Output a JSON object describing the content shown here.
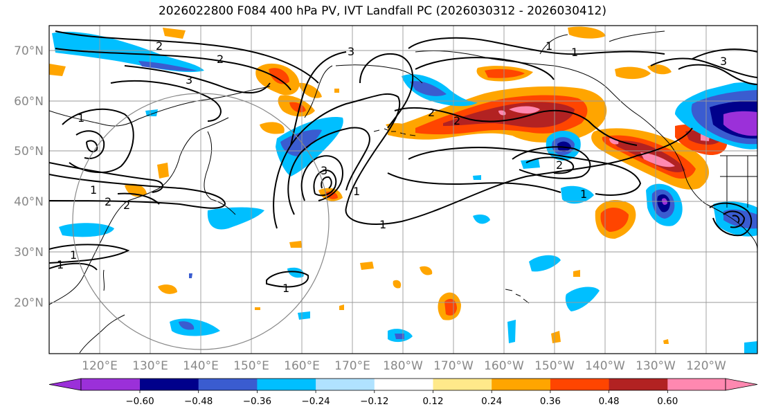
{
  "title": "2026022800 F084 400 hPa PV, IVT Landfall PC (2026030312 - 2026030412)",
  "lat_labels": [
    "70°N",
    "60°N",
    "50°N",
    "40°N",
    "30°N",
    "20°N"
  ],
  "lon_labels": [
    "120°E",
    "130°E",
    "140°E",
    "150°E",
    "160°E",
    "170°E",
    "180°W",
    "170°W",
    "160°W",
    "150°W",
    "140°W",
    "130°W",
    "120°W"
  ],
  "colorbar": {
    "ticks": [
      "−0.60",
      "−0.48",
      "−0.36",
      "−0.24",
      "−0.12",
      "0.12",
      "0.24",
      "0.36",
      "0.48",
      "0.60"
    ],
    "colors": [
      "#9b30d9",
      "#00008b",
      "#3a5cd0",
      "#00bfff",
      "#b0e2ff",
      "#ffffff",
      "#ffe98a",
      "#ffa500",
      "#ff4500",
      "#b22222",
      "#ff88b0"
    ]
  },
  "contour_labels": [
    "2",
    "2",
    "3",
    "1",
    "1",
    "2",
    "2",
    "3",
    "1",
    "1",
    "2",
    "2",
    "1",
    "1",
    "3",
    "1",
    "2",
    "1",
    "1",
    "1",
    "3"
  ]
}
